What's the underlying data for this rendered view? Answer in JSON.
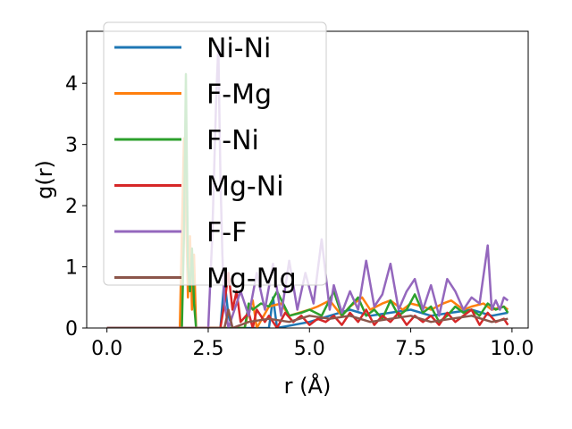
{
  "chart_data": {
    "type": "line",
    "title": "",
    "xlabel": "r (Å)",
    "ylabel": "g(r)",
    "xlim": [
      -0.5,
      10.4
    ],
    "ylim": [
      0,
      4.85
    ],
    "xticks": [
      "0.0",
      "2.5",
      "5.0",
      "7.5",
      "10.0"
    ],
    "yticks": [
      "0",
      "1",
      "2",
      "3",
      "4"
    ],
    "grid": false,
    "legend_position": "upper-left",
    "series": [
      {
        "name": "Ni-Ni",
        "color": "#1f77b4",
        "x": [
          0,
          1.8,
          2.8,
          2.9,
          3.0,
          3.1,
          4.0,
          4.1,
          4.2,
          5.0,
          5.5,
          6.0,
          6.5,
          7.0,
          7.5,
          8.0,
          8.5,
          9.0,
          9.5,
          9.9
        ],
        "y": [
          0,
          0,
          0,
          0.8,
          0.2,
          0,
          0,
          0.5,
          0,
          0.1,
          0.2,
          0.3,
          0.2,
          0.25,
          0.3,
          0.2,
          0.25,
          0.3,
          0.2,
          0.25
        ]
      },
      {
        "name": "F-Mg",
        "color": "#ff7f0e",
        "x": [
          0,
          1.8,
          1.9,
          1.95,
          2.0,
          2.05,
          2.1,
          2.15,
          2.2,
          3.4,
          3.5,
          3.6,
          3.7,
          4.0,
          4.3,
          4.5,
          5.0,
          5.2,
          5.5,
          5.8,
          6.0,
          6.3,
          6.5,
          6.8,
          7.0,
          7.3,
          7.5,
          7.8,
          8.0,
          8.3,
          8.5,
          8.8,
          9.0,
          9.3,
          9.5,
          9.8,
          9.9
        ],
        "y": [
          0,
          0,
          3.1,
          2.0,
          0.5,
          1.5,
          0.3,
          1.2,
          0,
          0,
          0.3,
          0.45,
          0,
          0.35,
          0.4,
          0.2,
          0.3,
          0.35,
          0.45,
          0.2,
          0.35,
          0.5,
          0.3,
          0.4,
          0.45,
          0.3,
          0.4,
          0.35,
          0.3,
          0.4,
          0.45,
          0.3,
          0.35,
          0.4,
          0.3,
          0.35,
          0.3
        ]
      },
      {
        "name": "F-Ni",
        "color": "#2ca02c",
        "x": [
          0,
          1.85,
          1.9,
          1.95,
          2.0,
          2.05,
          2.1,
          2.15,
          2.2,
          3.4,
          3.5,
          3.6,
          3.8,
          4.0,
          4.2,
          4.5,
          4.8,
          5.0,
          5.3,
          5.6,
          5.8,
          6.0,
          6.2,
          6.4,
          6.6,
          6.8,
          7.0,
          7.2,
          7.4,
          7.6,
          7.8,
          8.0,
          8.2,
          8.4,
          8.6,
          8.8,
          9.0,
          9.2,
          9.4,
          9.6,
          9.8,
          9.9
        ],
        "y": [
          0,
          0,
          1.5,
          4.15,
          1.0,
          0.6,
          1.3,
          0.4,
          0,
          0,
          0.4,
          0.3,
          0.4,
          0.35,
          0.6,
          0.2,
          0.25,
          0.3,
          0.2,
          0.6,
          0.2,
          0.35,
          0.5,
          0.2,
          0.3,
          0.15,
          0.45,
          0.2,
          0.3,
          0.55,
          0.25,
          0.35,
          0.1,
          0.2,
          0.35,
          0.25,
          0.3,
          0.2,
          0.4,
          0.3,
          0.35,
          0.25
        ]
      },
      {
        "name": "Mg-Ni",
        "color": "#d62728",
        "x": [
          0,
          2.8,
          2.9,
          3.0,
          3.1,
          3.2,
          3.3,
          3.5,
          3.6,
          3.7,
          3.9,
          4.0,
          4.2,
          4.4,
          4.6,
          4.8,
          5.0,
          5.2,
          5.4,
          5.6,
          5.8,
          6.0,
          6.2,
          6.4,
          6.6,
          6.8,
          7.0,
          7.2,
          7.4,
          7.6,
          7.8,
          8.0,
          8.2,
          8.4,
          8.6,
          8.8,
          9.0,
          9.2,
          9.4,
          9.6,
          9.8,
          9.9
        ],
        "y": [
          0,
          0,
          0.4,
          0.9,
          0.3,
          0.6,
          0.1,
          0.25,
          0,
          0.3,
          0.1,
          0.2,
          0,
          0.25,
          0.1,
          0.2,
          0.05,
          0.15,
          0.1,
          0.2,
          0.05,
          0.25,
          0.1,
          0.3,
          0.05,
          0.2,
          0.1,
          0.25,
          0.05,
          0.2,
          0.1,
          0.2,
          0.05,
          0.25,
          0.1,
          0.2,
          0.3,
          0.05,
          0.25,
          0.1,
          0.15,
          0.05
        ]
      },
      {
        "name": "F-F",
        "color": "#9467bd",
        "x": [
          0,
          2.5,
          2.6,
          2.7,
          2.75,
          2.8,
          2.85,
          2.9,
          3.0,
          3.3,
          3.5,
          3.7,
          3.9,
          4.1,
          4.3,
          4.5,
          4.7,
          4.9,
          5.1,
          5.3,
          5.5,
          5.6,
          5.8,
          6.0,
          6.2,
          6.4,
          6.6,
          6.8,
          7.0,
          7.2,
          7.4,
          7.6,
          7.8,
          8.0,
          8.2,
          8.4,
          8.6,
          8.8,
          9.0,
          9.2,
          9.4,
          9.5,
          9.6,
          9.7,
          9.8,
          9.9
        ],
        "y": [
          0,
          0,
          1.5,
          3.8,
          4.6,
          2.5,
          1.2,
          0.4,
          0,
          0.6,
          0.2,
          0.9,
          0.3,
          1.05,
          0.2,
          1.1,
          0.3,
          0.9,
          0.4,
          1.45,
          0.3,
          0.7,
          0.25,
          0.6,
          0.3,
          1.1,
          0.35,
          0.55,
          1.05,
          0.3,
          0.6,
          0.8,
          0.3,
          0.7,
          0.2,
          0.8,
          0.6,
          0.3,
          0.5,
          0.4,
          1.35,
          0.3,
          0.45,
          0.3,
          0.5,
          0.45
        ]
      },
      {
        "name": "Mg-Mg",
        "color": "#8c564b",
        "x": [
          0,
          2.9,
          3.0,
          3.1,
          3.5,
          4.0,
          4.5,
          5.0,
          5.5,
          6.0,
          6.5,
          7.0,
          7.5,
          8.0,
          8.5,
          9.0,
          9.5,
          9.9
        ],
        "y": [
          0,
          0,
          0.3,
          0,
          0.1,
          0.15,
          0.1,
          0.2,
          0.15,
          0.2,
          0.1,
          0.15,
          0.2,
          0.1,
          0.15,
          0.2,
          0.1,
          0.15
        ]
      }
    ]
  }
}
